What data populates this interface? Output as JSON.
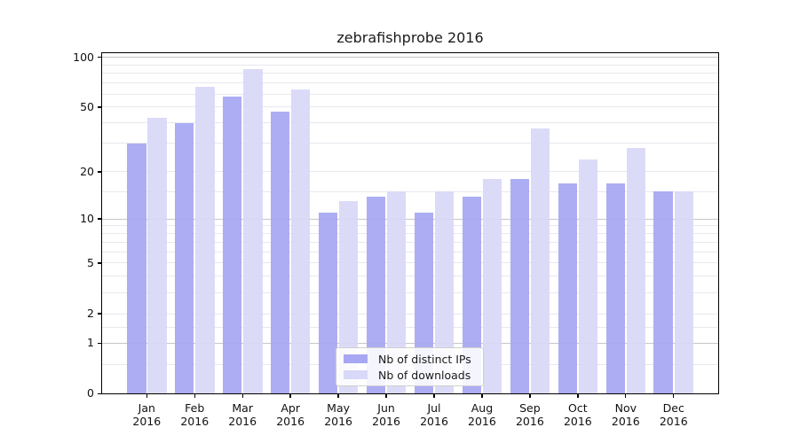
{
  "chart_data": {
    "type": "bar",
    "title": "zebrafishprobe 2016",
    "categories": [
      "Jan",
      "Feb",
      "Mar",
      "Apr",
      "May",
      "Jun",
      "Jul",
      "Aug",
      "Sep",
      "Oct",
      "Nov",
      "Dec"
    ],
    "x_year_label": "2016",
    "series": [
      {
        "name": "Nb of distinct IPs",
        "color": "#a7a7f3",
        "values": [
          30,
          40,
          58,
          47,
          11,
          14,
          11,
          14,
          18,
          17,
          17,
          15
        ]
      },
      {
        "name": "Nb of downloads",
        "color": "#d8d8f8",
        "values": [
          43,
          66,
          85,
          64,
          13,
          15,
          15,
          18,
          37,
          24,
          28,
          15
        ]
      }
    ],
    "y_scale": "log(value+1)",
    "y_tick_labels": [
      "100",
      "50",
      "20",
      "10",
      "5",
      "2",
      "1",
      "0"
    ],
    "y_tick_values": [
      100,
      50,
      20,
      10,
      5,
      2,
      1,
      0
    ],
    "y_minor_gridline_values": [
      90,
      80,
      70,
      60,
      50,
      40,
      30,
      20,
      15,
      9,
      8,
      7,
      6,
      5,
      4,
      3,
      2,
      1.5,
      0.5
    ],
    "y_decade_gridline_values": [
      100,
      10,
      1
    ],
    "ylim": [
      0,
      100
    ],
    "grid": "on",
    "legend_position": "lower center"
  },
  "legend": {
    "items": [
      {
        "label": "Nb of distinct IPs",
        "color": "#a7a7f3"
      },
      {
        "label": "Nb of downloads",
        "color": "#d8d8f8"
      }
    ]
  }
}
